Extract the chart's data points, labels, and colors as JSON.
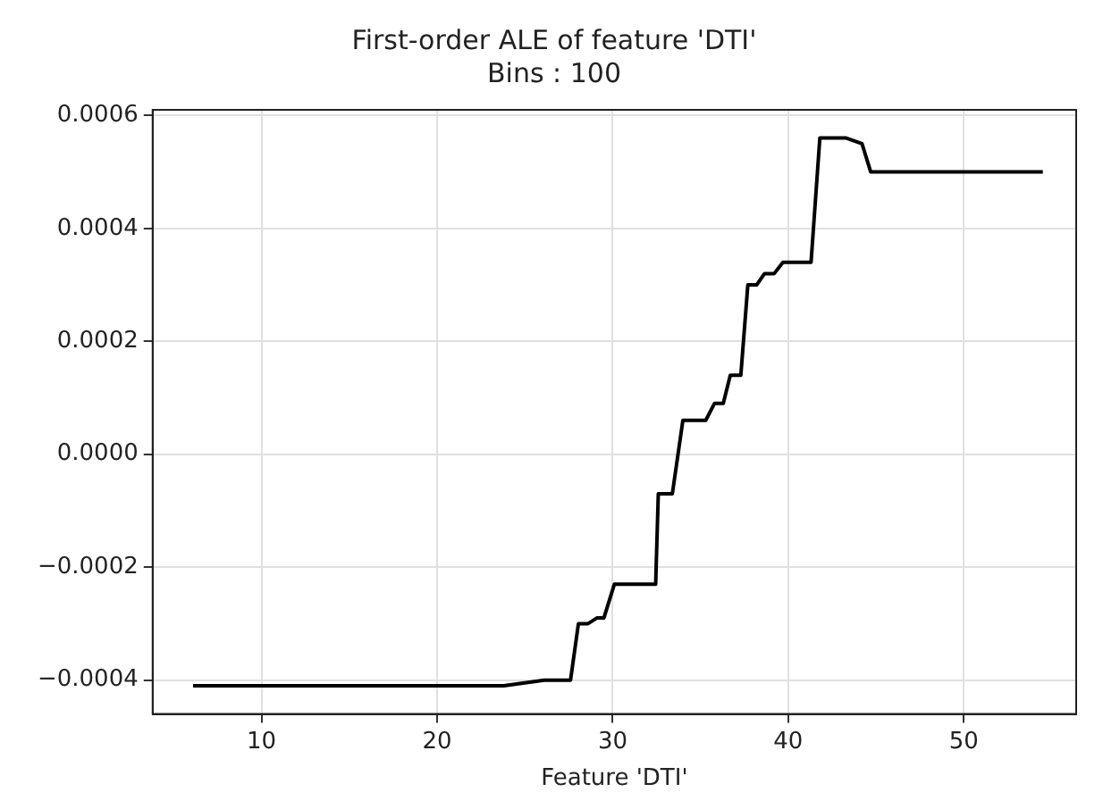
{
  "chart_data": {
    "type": "line",
    "title": "First-order ALE of feature 'DTI'",
    "subtitle": "Bins : 100",
    "xlabel": "Feature 'DTI'",
    "x": [
      6.1,
      23.8,
      26.1,
      27.6,
      28.05,
      28.6,
      29.1,
      29.5,
      30.1,
      32.45,
      32.6,
      33.4,
      34.0,
      35.3,
      35.8,
      36.3,
      36.7,
      37.3,
      37.7,
      38.2,
      38.65,
      39.2,
      39.7,
      41.3,
      41.8,
      43.3,
      44.2,
      44.7,
      54.5
    ],
    "series": [
      {
        "color": "#000000",
        "values": [
          -0.00041,
          -0.00041,
          -0.0004,
          -0.0004,
          -0.0003,
          -0.0003,
          -0.00029,
          -0.00029,
          -0.00023,
          -0.00023,
          -7e-05,
          -7e-05,
          6e-05,
          6e-05,
          9e-05,
          9e-05,
          0.00014,
          0.00014,
          0.0003,
          0.0003,
          0.00032,
          0.00032,
          0.00034,
          0.00034,
          0.00056,
          0.00056,
          0.00055,
          0.0005,
          0.0005
        ]
      }
    ],
    "xlim": [
      3.8,
      56.4
    ],
    "xticks": [
      10,
      20,
      30,
      40,
      50
    ],
    "ylim": [
      -0.00046,
      0.00061
    ],
    "yticks": [
      {
        "value": -0.0004,
        "label": "−0.0004"
      },
      {
        "value": -0.0002,
        "label": "−0.0002"
      },
      {
        "value": 0,
        "label": "0.0000"
      },
      {
        "value": 0.0002,
        "label": "0.0002"
      },
      {
        "value": 0.0004,
        "label": "0.0004"
      },
      {
        "value": 0.0006,
        "label": "0.0006"
      }
    ],
    "grid": true,
    "marker": "none",
    "line_style": "solid",
    "legend": false
  }
}
